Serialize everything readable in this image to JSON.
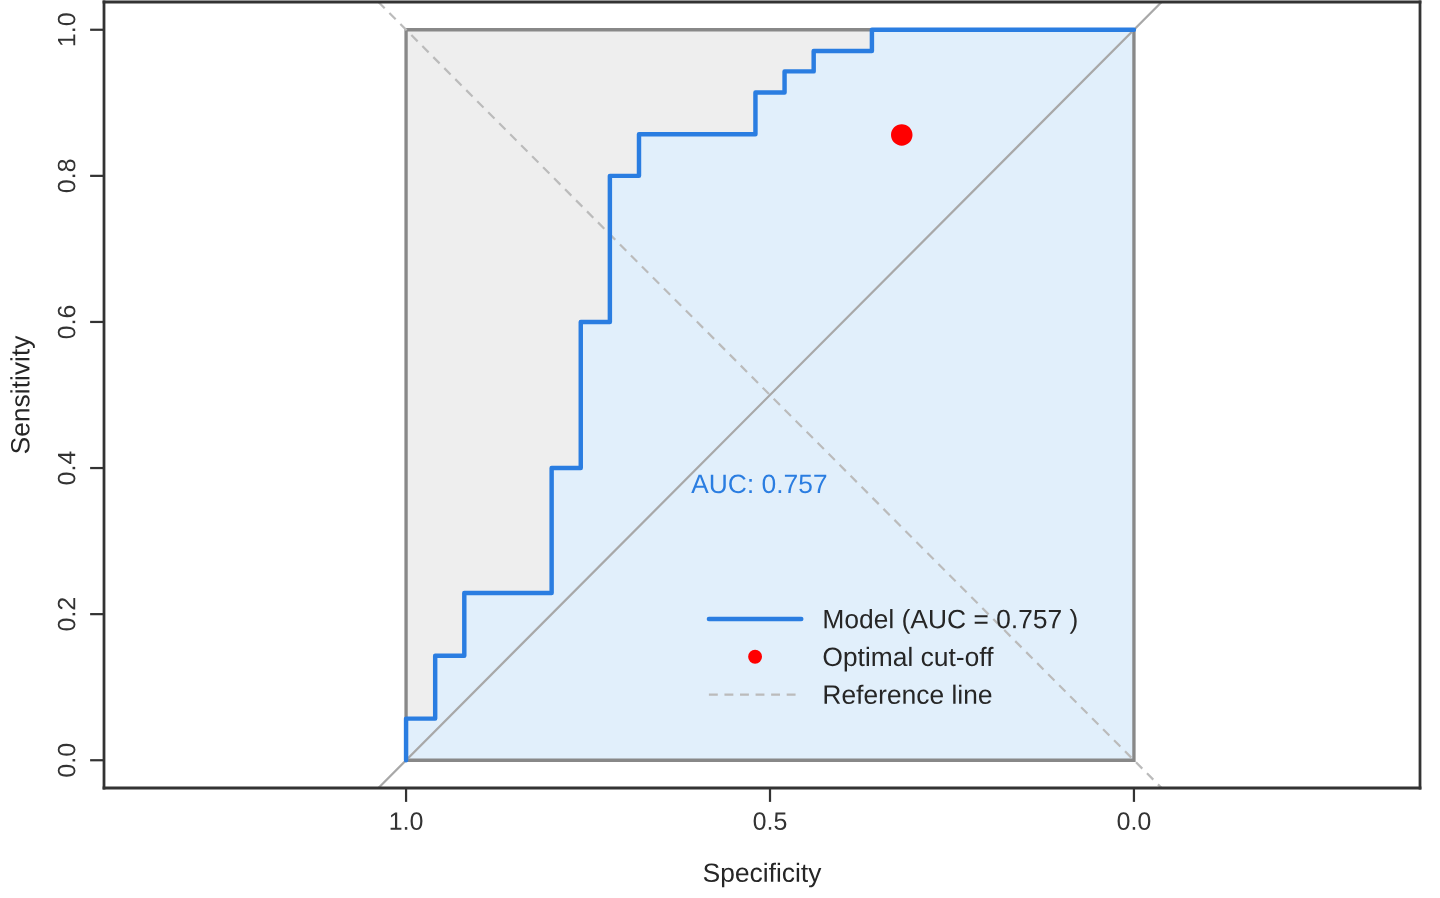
{
  "chart_data": {
    "type": "line",
    "xlabel": "Specificity",
    "ylabel": "Sensitivity",
    "xlim": [
      1.415,
      -0.393
    ],
    "ylim": [
      -0.038,
      1.038
    ],
    "xticks": [
      {
        "value": 1.0,
        "label": "1.0"
      },
      {
        "value": 0.5,
        "label": "0.5"
      },
      {
        "value": 0.0,
        "label": "0.0"
      }
    ],
    "yticks": [
      {
        "value": 0.0,
        "label": "0.0"
      },
      {
        "value": 0.2,
        "label": "0.2"
      },
      {
        "value": 0.4,
        "label": "0.4"
      },
      {
        "value": 0.6,
        "label": "0.6"
      },
      {
        "value": 0.8,
        "label": "0.8"
      },
      {
        "value": 1.0,
        "label": "1.0"
      }
    ],
    "grid": false,
    "legend": "bottom",
    "series": [
      {
        "name": "Model (AUC = 0.757 )",
        "color": "#2a7de1",
        "line_style": "solid",
        "x": [
          1,
          1,
          0.96,
          0.96,
          0.92,
          0.92,
          0.8,
          0.8,
          0.76,
          0.76,
          0.72,
          0.72,
          0.68,
          0.68,
          0.52,
          0.52,
          0.48,
          0.48,
          0.44,
          0.44,
          0.36,
          0.36,
          0
        ],
        "values": [
          0,
          0.057,
          0.057,
          0.143,
          0.143,
          0.229,
          0.229,
          0.4,
          0.4,
          0.6,
          0.6,
          0.8,
          0.8,
          0.857,
          0.857,
          0.914,
          0.914,
          0.943,
          0.943,
          0.971,
          0.971,
          1,
          1
        ]
      },
      {
        "name": "Optimal cut-off",
        "type": "scatter",
        "color": "#ff0000",
        "marker": "circle",
        "x": [
          0.319
        ],
        "values": [
          0.856
        ]
      },
      {
        "name": "Reference line",
        "color": "#bbbbbb",
        "line_style": "dashed",
        "x": [
          1.038,
          -0.038
        ],
        "values": [
          1.038,
          -0.038
        ]
      },
      {
        "color": "#a8a8a8",
        "line_style": "solid",
        "x": [
          1.038,
          -0.038
        ],
        "values": [
          -0.038,
          1.038
        ]
      }
    ],
    "annotations": [
      "AUC: 0.757"
    ]
  }
}
